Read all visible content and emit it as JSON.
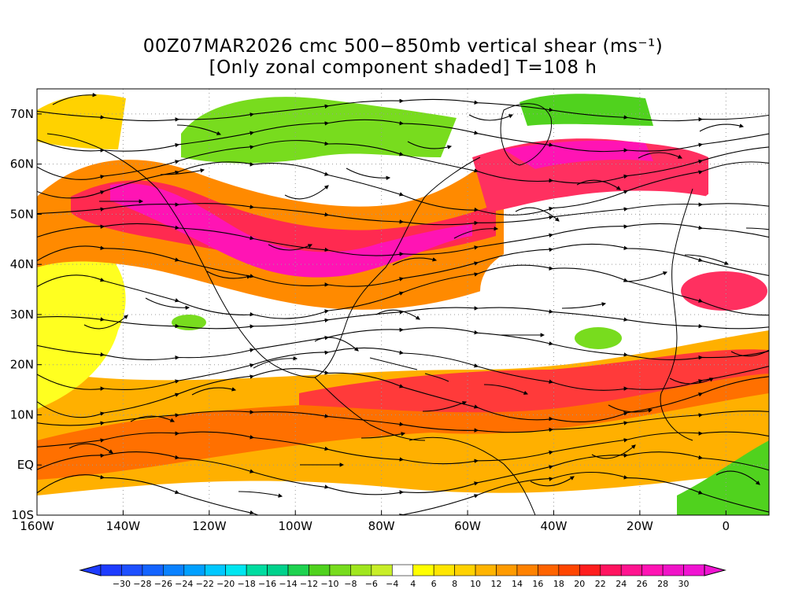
{
  "title": {
    "line1": "00Z07MAR2026 cmc 500−850mb vertical shear (ms⁻¹)",
    "line2": "[Only zonal component shaded] T=108 h"
  },
  "map": {
    "lon_range": [
      -160,
      10
    ],
    "lat_range": [
      -10,
      75
    ],
    "lat_ticks": [
      {
        "value": 70,
        "label": "70N"
      },
      {
        "value": 60,
        "label": "60N"
      },
      {
        "value": 50,
        "label": "50N"
      },
      {
        "value": 40,
        "label": "40N"
      },
      {
        "value": 30,
        "label": "30N"
      },
      {
        "value": 20,
        "label": "20N"
      },
      {
        "value": 10,
        "label": "10N"
      },
      {
        "value": 0,
        "label": "EQ"
      },
      {
        "value": -10,
        "label": "10S"
      }
    ],
    "lon_ticks": [
      {
        "value": -160,
        "label": "160W"
      },
      {
        "value": -140,
        "label": "140W"
      },
      {
        "value": -120,
        "label": "120W"
      },
      {
        "value": -100,
        "label": "100W"
      },
      {
        "value": -80,
        "label": "80W"
      },
      {
        "value": -60,
        "label": "60W"
      },
      {
        "value": -40,
        "label": "40W"
      },
      {
        "value": -20,
        "label": "20W"
      },
      {
        "value": 0,
        "label": "0"
      }
    ],
    "gridlines": true,
    "colorbar": {
      "labels": [
        "−30",
        "−28",
        "−26",
        "−24",
        "−22",
        "−20",
        "−18",
        "−16",
        "−14",
        "−12",
        "−10",
        "−8",
        "−6",
        "−4",
        "4",
        "6",
        "8",
        "10",
        "12",
        "14",
        "16",
        "18",
        "20",
        "22",
        "24",
        "26",
        "28",
        "30"
      ],
      "colors": [
        "#1e3cff",
        "#1e50ff",
        "#1464ff",
        "#0a82ff",
        "#00a0ff",
        "#00c8ff",
        "#00e6f0",
        "#00dca0",
        "#00d28c",
        "#1ed250",
        "#50d21e",
        "#78dc1e",
        "#a0e61e",
        "#c8ee28",
        "#ffffff",
        "#ffff00",
        "#ffe600",
        "#ffd200",
        "#ffb400",
        "#ff9b00",
        "#ff8200",
        "#ff6400",
        "#ff4600",
        "#ff1e1e",
        "#ff1460",
        "#ff1490",
        "#ff14b4",
        "#f014c8",
        "#f014d2"
      ]
    }
  }
}
